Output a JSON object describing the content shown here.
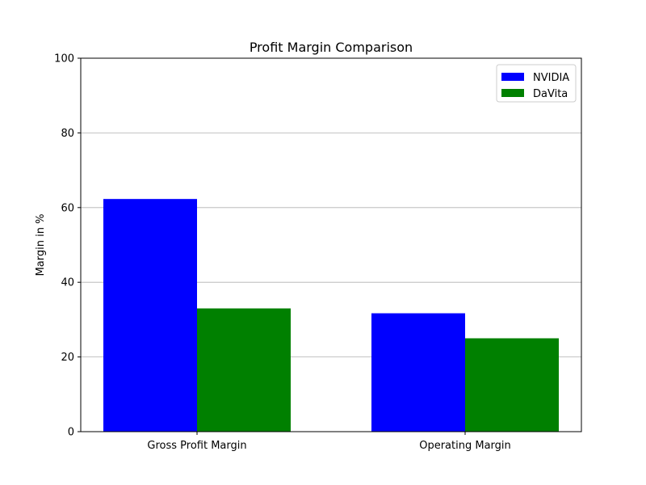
{
  "chart_data": {
    "type": "bar",
    "title": "Profit Margin Comparison",
    "xlabel": "",
    "ylabel": "Margin in %",
    "categories": [
      "Gross Profit Margin",
      "Operating Margin"
    ],
    "series": [
      {
        "name": "NVIDIA",
        "values": [
          62.3,
          31.7
        ],
        "color": "#0000ff"
      },
      {
        "name": "DaVita",
        "values": [
          33.0,
          25.0
        ],
        "color": "#008000"
      }
    ],
    "ylim": [
      0,
      100
    ],
    "yticks": [
      0,
      20,
      40,
      60,
      80,
      100
    ],
    "grid": "y-axis",
    "legend_position": "top-right"
  }
}
